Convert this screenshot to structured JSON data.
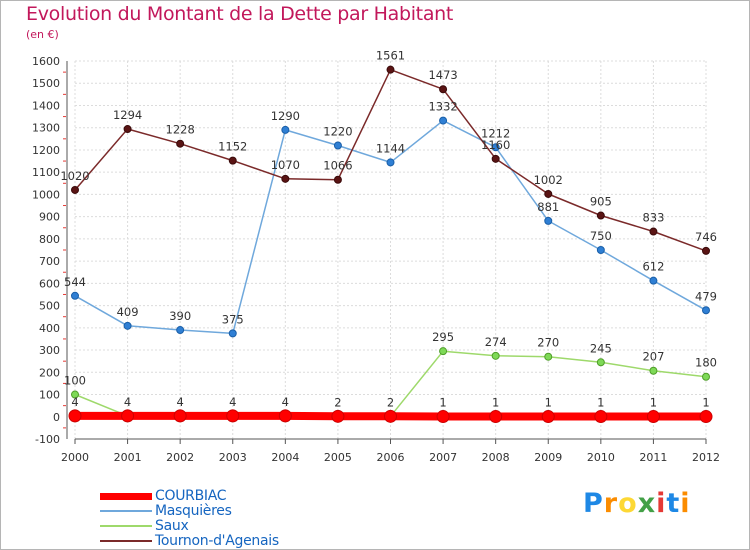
{
  "header": {
    "title": "Evolution du Montant de la Dette par Habitant",
    "unit": "(en €)"
  },
  "logo": {
    "letters": [
      "P",
      "r",
      "o",
      "x",
      "i",
      "t",
      "i"
    ],
    "colors": [
      "#1e88e5",
      "#fb8c00",
      "#fdd835",
      "#43a047",
      "#e53935",
      "#1e88e5",
      "#fb8c00"
    ]
  },
  "chart_data": {
    "type": "line",
    "title": "Evolution du Montant de la Dette par Habitant",
    "subtitle": "(en €)",
    "xlabel": "",
    "ylabel": "",
    "x": [
      "2000",
      "2001",
      "2002",
      "2003",
      "2004",
      "2005",
      "2006",
      "2007",
      "2008",
      "2009",
      "2010",
      "2011",
      "2012"
    ],
    "ylim": [
      -100,
      1600
    ],
    "yticks": [
      -100,
      0,
      100,
      200,
      300,
      400,
      500,
      600,
      700,
      800,
      900,
      1000,
      1100,
      1200,
      1300,
      1400,
      1500,
      1600
    ],
    "grid": true,
    "legend": "bottom-left",
    "series": [
      {
        "name": "COURBIAC",
        "color": "#ff0000",
        "values": [
          4,
          4,
          4,
          4,
          4,
          2,
          2,
          1,
          1,
          1,
          1,
          1,
          1
        ]
      },
      {
        "name": "Masquières",
        "color": "#6fa8dc",
        "values": [
          544,
          409,
          390,
          375,
          1290,
          1220,
          1144,
          1332,
          1212,
          881,
          750,
          612,
          479
        ]
      },
      {
        "name": "Saux",
        "color": "#9ed96b",
        "values": [
          100,
          4,
          4,
          4,
          4,
          2,
          2,
          295,
          274,
          270,
          245,
          207,
          180
        ]
      },
      {
        "name": "Tournon-d'Agenais",
        "color": "#7b2a2a",
        "values": [
          1020,
          1294,
          1228,
          1152,
          1070,
          1066,
          1561,
          1473,
          1160,
          1002,
          905,
          833,
          746
        ]
      }
    ]
  }
}
